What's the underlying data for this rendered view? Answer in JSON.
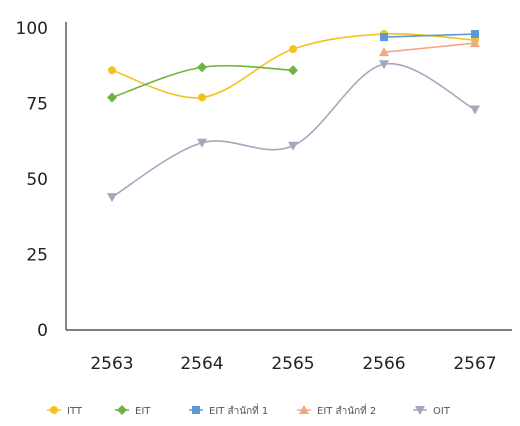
{
  "chart_data": {
    "type": "line",
    "categories": [
      "2563",
      "2564",
      "2565",
      "2566",
      "2567"
    ],
    "ylim": [
      0,
      100
    ],
    "yticks": [
      0,
      25,
      50,
      75,
      100
    ],
    "grid": false,
    "legend_position": "bottom",
    "series": [
      {
        "name": "ITT",
        "color": "#f4c21f",
        "marker": "circle",
        "values": [
          86,
          77,
          93,
          98,
          96
        ]
      },
      {
        "name": "EIT",
        "color": "#6cb33f",
        "marker": "diamond",
        "values": [
          77,
          87,
          86,
          null,
          null
        ]
      },
      {
        "name": "EIT สำนักที่ 1",
        "color": "#5b9bd5",
        "marker": "square",
        "values": [
          null,
          null,
          null,
          97,
          98
        ]
      },
      {
        "name": "EIT สำนักที่ 2",
        "color": "#f4a582",
        "marker": "triangle-up",
        "values": [
          null,
          null,
          null,
          92,
          95
        ]
      },
      {
        "name": "OIT",
        "color": "#a6a6bd",
        "marker": "triangle-down",
        "values": [
          44,
          62,
          61,
          88,
          73
        ]
      }
    ]
  }
}
